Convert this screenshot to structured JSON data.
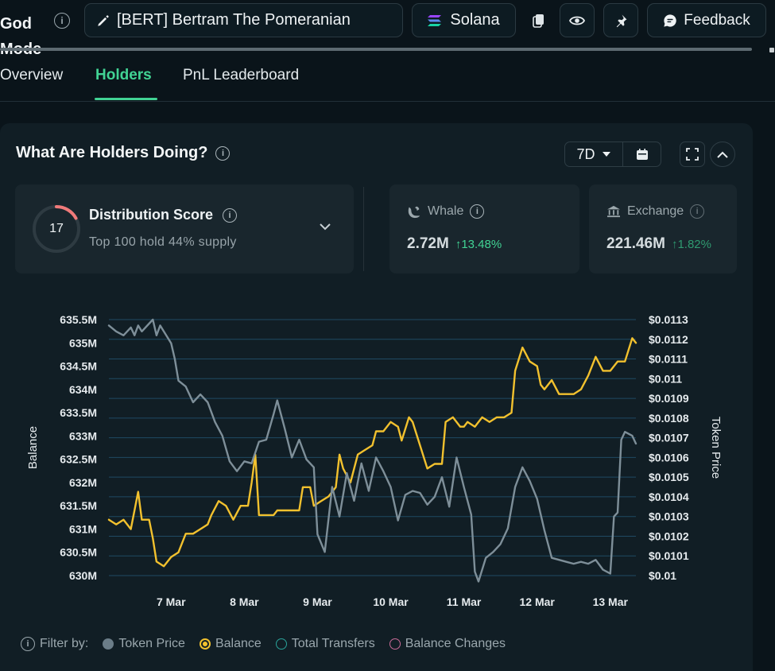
{
  "header": {
    "app_title_line1": "God",
    "app_title_line2": "Mode",
    "token_title": "[BERT] Bertram The Pomeranian",
    "chain": "Solana",
    "feedback_label": "Feedback"
  },
  "tabs": [
    {
      "label": "Overview"
    },
    {
      "label": "Holders"
    },
    {
      "label": "PnL Leaderboard"
    }
  ],
  "card": {
    "title": "What Are Holders Doing?",
    "timeframe": "7D"
  },
  "distribution": {
    "score": "17",
    "score_fraction": 0.17,
    "title": "Distribution Score",
    "subtitle": "Top 100 hold 44% supply"
  },
  "whale": {
    "label": "Whale",
    "value": "2.72M",
    "change": "13.48%"
  },
  "exchange": {
    "label": "Exchange",
    "value": "221.46M",
    "change": "1.82%"
  },
  "filters": {
    "label": "Filter by:",
    "items": [
      {
        "label": "Token Price"
      },
      {
        "label": "Balance"
      },
      {
        "label": "Total Transfers"
      },
      {
        "label": "Balance Changes"
      }
    ]
  },
  "colors": {
    "balance": "#f2c12e",
    "price": "#7e8f99",
    "accent": "#41d394"
  },
  "chart_data": {
    "type": "line",
    "ylabel": "Balance",
    "y2label": "Token Price",
    "ylim": [
      630000000,
      635500000
    ],
    "y2lim": [
      0.01,
      0.0113
    ],
    "yticks": [
      "635.5M",
      "635M",
      "634.5M",
      "634M",
      "633.5M",
      "633M",
      "632.5M",
      "632M",
      "631.5M",
      "631M",
      "630.5M",
      "630M"
    ],
    "y2ticks": [
      "$0.0113",
      "$0.0112",
      "$0.0111",
      "$0.011",
      "$0.0109",
      "$0.0108",
      "$0.0107",
      "$0.0106",
      "$0.0105",
      "$0.0104",
      "$0.0103",
      "$0.0102",
      "$0.0101",
      "$0.01"
    ],
    "xticks": [
      {
        "label": "7 Mar",
        "x": 1
      },
      {
        "label": "8 Mar",
        "x": 2
      },
      {
        "label": "9 Mar",
        "x": 3
      },
      {
        "label": "10 Mar",
        "x": 4
      },
      {
        "label": "11 Mar",
        "x": 5
      },
      {
        "label": "12 Mar",
        "x": 6
      },
      {
        "label": "13 Mar",
        "x": 7
      }
    ],
    "xlim": [
      0.15,
      7.35
    ],
    "series": [
      {
        "name": "Balance",
        "axis": "left",
        "points": [
          [
            0.15,
            631.2
          ],
          [
            0.25,
            631.1
          ],
          [
            0.35,
            631.2
          ],
          [
            0.45,
            631.0
          ],
          [
            0.55,
            631.8
          ],
          [
            0.6,
            631.2
          ],
          [
            0.7,
            631.2
          ],
          [
            0.75,
            630.8
          ],
          [
            0.8,
            630.3
          ],
          [
            0.9,
            630.2
          ],
          [
            1.0,
            630.4
          ],
          [
            1.1,
            630.5
          ],
          [
            1.2,
            630.9
          ],
          [
            1.3,
            630.9
          ],
          [
            1.4,
            631.0
          ],
          [
            1.5,
            631.1
          ],
          [
            1.55,
            631.3
          ],
          [
            1.65,
            631.6
          ],
          [
            1.75,
            631.5
          ],
          [
            1.85,
            631.2
          ],
          [
            1.95,
            631.5
          ],
          [
            2.05,
            631.5
          ],
          [
            2.1,
            632.0
          ],
          [
            2.15,
            632.6
          ],
          [
            2.2,
            631.3
          ],
          [
            2.3,
            631.3
          ],
          [
            2.4,
            631.3
          ],
          [
            2.45,
            631.4
          ],
          [
            2.55,
            631.4
          ],
          [
            2.65,
            631.4
          ],
          [
            2.75,
            631.4
          ],
          [
            2.8,
            631.9
          ],
          [
            2.9,
            631.9
          ],
          [
            2.95,
            631.5
          ],
          [
            3.05,
            631.6
          ],
          [
            3.15,
            631.7
          ],
          [
            3.25,
            631.9
          ],
          [
            3.3,
            632.6
          ],
          [
            3.35,
            632.3
          ],
          [
            3.45,
            632.0
          ],
          [
            3.55,
            632.6
          ],
          [
            3.65,
            632.7
          ],
          [
            3.75,
            632.8
          ],
          [
            3.8,
            633.1
          ],
          [
            3.9,
            633.1
          ],
          [
            4.0,
            633.3
          ],
          [
            4.1,
            633.2
          ],
          [
            4.15,
            632.9
          ],
          [
            4.25,
            633.4
          ],
          [
            4.3,
            633.3
          ],
          [
            4.4,
            632.8
          ],
          [
            4.5,
            632.3
          ],
          [
            4.6,
            632.4
          ],
          [
            4.7,
            632.4
          ],
          [
            4.75,
            633.3
          ],
          [
            4.85,
            633.4
          ],
          [
            4.95,
            633.2
          ],
          [
            5.0,
            633.2
          ],
          [
            5.05,
            633.3
          ],
          [
            5.15,
            633.2
          ],
          [
            5.25,
            633.4
          ],
          [
            5.35,
            633.3
          ],
          [
            5.45,
            633.4
          ],
          [
            5.55,
            633.4
          ],
          [
            5.65,
            633.5
          ],
          [
            5.7,
            634.4
          ],
          [
            5.8,
            634.9
          ],
          [
            5.9,
            634.6
          ],
          [
            6.0,
            634.5
          ],
          [
            6.05,
            634.1
          ],
          [
            6.1,
            634.0
          ],
          [
            6.2,
            634.2
          ],
          [
            6.3,
            633.9
          ],
          [
            6.4,
            633.9
          ],
          [
            6.5,
            633.9
          ],
          [
            6.6,
            634.0
          ],
          [
            6.7,
            634.3
          ],
          [
            6.8,
            634.7
          ],
          [
            6.9,
            634.4
          ],
          [
            7.0,
            634.4
          ],
          [
            7.1,
            634.6
          ],
          [
            7.2,
            634.6
          ],
          [
            7.3,
            635.1
          ],
          [
            7.35,
            635.0
          ]
        ]
      },
      {
        "name": "Token Price",
        "axis": "right",
        "points": [
          [
            0.15,
            0.01127
          ],
          [
            0.25,
            0.01124
          ],
          [
            0.35,
            0.01122
          ],
          [
            0.45,
            0.01126
          ],
          [
            0.5,
            0.01122
          ],
          [
            0.55,
            0.01127
          ],
          [
            0.6,
            0.01124
          ],
          [
            0.7,
            0.01128
          ],
          [
            0.75,
            0.0113
          ],
          [
            0.8,
            0.01122
          ],
          [
            0.85,
            0.01127
          ],
          [
            0.9,
            0.01124
          ],
          [
            1.0,
            0.01118
          ],
          [
            1.05,
            0.0111
          ],
          [
            1.1,
            0.01099
          ],
          [
            1.2,
            0.01096
          ],
          [
            1.3,
            0.01088
          ],
          [
            1.4,
            0.01092
          ],
          [
            1.5,
            0.01088
          ],
          [
            1.6,
            0.01078
          ],
          [
            1.7,
            0.01071
          ],
          [
            1.8,
            0.01058
          ],
          [
            1.9,
            0.01053
          ],
          [
            2.0,
            0.01058
          ],
          [
            2.1,
            0.01057
          ],
          [
            2.2,
            0.01068
          ],
          [
            2.3,
            0.01069
          ],
          [
            2.4,
            0.01082
          ],
          [
            2.45,
            0.01089
          ],
          [
            2.55,
            0.01075
          ],
          [
            2.65,
            0.0106
          ],
          [
            2.75,
            0.01069
          ],
          [
            2.85,
            0.01059
          ],
          [
            2.95,
            0.01055
          ],
          [
            3.0,
            0.01021
          ],
          [
            3.1,
            0.01012
          ],
          [
            3.2,
            0.01045
          ],
          [
            3.3,
            0.0103
          ],
          [
            3.4,
            0.01052
          ],
          [
            3.5,
            0.01038
          ],
          [
            3.6,
            0.01057
          ],
          [
            3.7,
            0.01043
          ],
          [
            3.8,
            0.0106
          ],
          [
            3.9,
            0.01053
          ],
          [
            4.0,
            0.01045
          ],
          [
            4.1,
            0.01028
          ],
          [
            4.2,
            0.01041
          ],
          [
            4.3,
            0.01043
          ],
          [
            4.4,
            0.01042
          ],
          [
            4.5,
            0.01036
          ],
          [
            4.6,
            0.0104
          ],
          [
            4.7,
            0.0105
          ],
          [
            4.8,
            0.01035
          ],
          [
            4.9,
            0.0106
          ],
          [
            5.0,
            0.01045
          ],
          [
            5.1,
            0.01031
          ],
          [
            5.15,
            0.01002
          ],
          [
            5.2,
            0.00997
          ],
          [
            5.3,
            0.01009
          ],
          [
            5.4,
            0.01012
          ],
          [
            5.5,
            0.01016
          ],
          [
            5.6,
            0.01024
          ],
          [
            5.7,
            0.01045
          ],
          [
            5.8,
            0.01055
          ],
          [
            5.9,
            0.01048
          ],
          [
            6.0,
            0.01039
          ],
          [
            6.1,
            0.01023
          ],
          [
            6.2,
            0.01009
          ],
          [
            6.3,
            0.01008
          ],
          [
            6.4,
            0.01007
          ],
          [
            6.5,
            0.01006
          ],
          [
            6.6,
            0.01007
          ],
          [
            6.7,
            0.01006
          ],
          [
            6.8,
            0.01008
          ],
          [
            6.9,
            0.01003
          ],
          [
            7.0,
            0.01001
          ],
          [
            7.05,
            0.0103
          ],
          [
            7.1,
            0.01032
          ],
          [
            7.15,
            0.01069
          ],
          [
            7.2,
            0.01073
          ],
          [
            7.3,
            0.01071
          ],
          [
            7.35,
            0.01067
          ]
        ]
      }
    ]
  }
}
